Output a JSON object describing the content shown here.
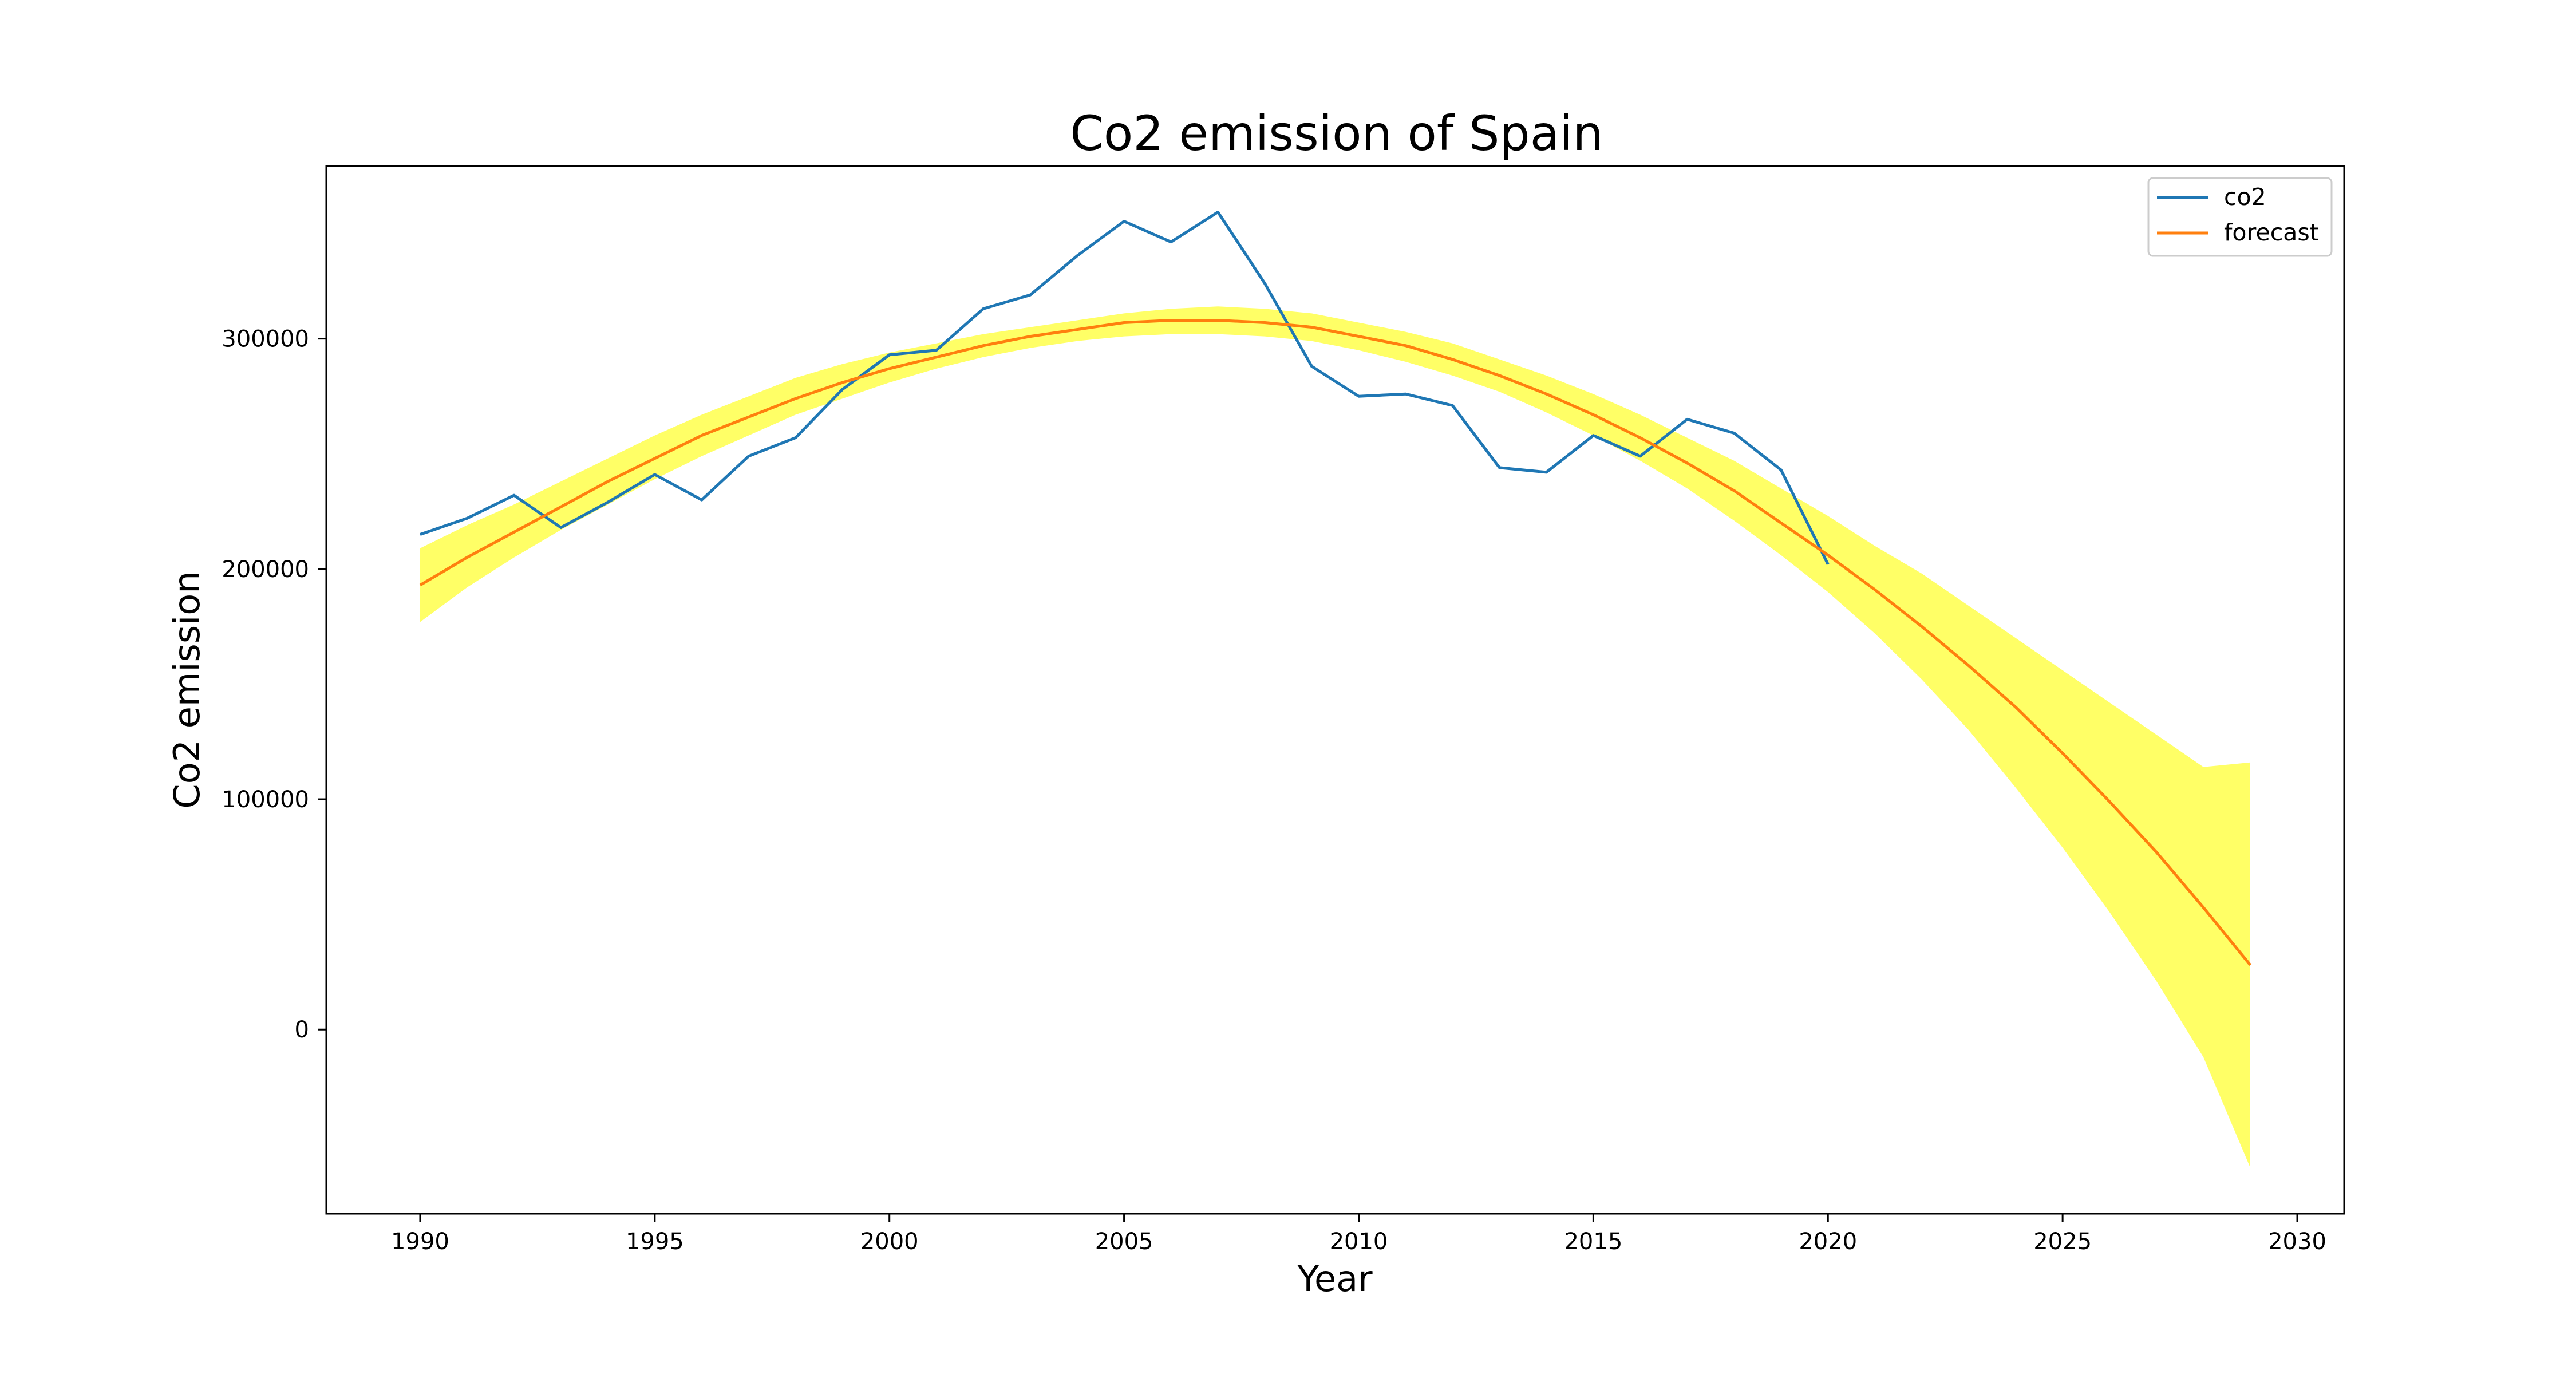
{
  "chart_data": {
    "type": "line",
    "title": "Co2 emission of Spain",
    "xlabel": "Year",
    "ylabel": "Co2 emission",
    "xlim": [
      1988,
      2031
    ],
    "ylim": [
      -80000,
      375000
    ],
    "xticks": [
      1990,
      1995,
      2000,
      2005,
      2010,
      2015,
      2020,
      2025,
      2030
    ],
    "yticks": [
      0,
      100000,
      200000,
      300000
    ],
    "grid": false,
    "legend_position": "top-right",
    "series": [
      {
        "name": "co2",
        "color": "#1f77b4",
        "x": [
          1990,
          1991,
          1992,
          1993,
          1994,
          1995,
          1996,
          1997,
          1998,
          1999,
          2000,
          2001,
          2002,
          2003,
          2004,
          2005,
          2006,
          2007,
          2008,
          2009,
          2010,
          2011,
          2012,
          2013,
          2014,
          2015,
          2016,
          2017,
          2018,
          2019,
          2020
        ],
        "values": [
          215000,
          222000,
          232000,
          218000,
          229000,
          241000,
          230000,
          249000,
          257000,
          278000,
          293000,
          295000,
          313000,
          319000,
          336000,
          351000,
          342000,
          355000,
          324000,
          288000,
          275000,
          276000,
          271000,
          244000,
          242000,
          258000,
          249000,
          265000,
          259000,
          243000,
          202000
        ]
      },
      {
        "name": "forecast",
        "color": "#ff7f0e",
        "x": [
          1990,
          1991,
          1992,
          1993,
          1994,
          1995,
          1996,
          1997,
          1998,
          1999,
          2000,
          2001,
          2002,
          2003,
          2004,
          2005,
          2006,
          2007,
          2008,
          2009,
          2010,
          2011,
          2012,
          2013,
          2014,
          2015,
          2016,
          2017,
          2018,
          2019,
          2020,
          2021,
          2022,
          2023,
          2024,
          2025,
          2026,
          2027,
          2028,
          2029
        ],
        "values": [
          193000,
          205000,
          216000,
          227000,
          238000,
          248000,
          258000,
          266000,
          274000,
          281000,
          287000,
          292000,
          297000,
          301000,
          304000,
          307000,
          308000,
          308000,
          307000,
          305000,
          301000,
          297000,
          291000,
          284000,
          276000,
          267000,
          257000,
          246000,
          234000,
          220000,
          206000,
          191000,
          175000,
          158000,
          140000,
          120000,
          99000,
          77000,
          53000,
          28000
        ]
      }
    ],
    "confidence_band": {
      "color": "#ffff66",
      "x": [
        1990,
        1991,
        1992,
        1993,
        1994,
        1995,
        1996,
        1997,
        1998,
        1999,
        2000,
        2001,
        2002,
        2003,
        2004,
        2005,
        2006,
        2007,
        2008,
        2009,
        2010,
        2011,
        2012,
        2013,
        2014,
        2015,
        2016,
        2017,
        2018,
        2019,
        2020,
        2021,
        2022,
        2023,
        2024,
        2025,
        2026,
        2027,
        2028,
        2029
      ],
      "lower": [
        177000,
        192000,
        205000,
        217000,
        228000,
        239000,
        249000,
        258000,
        267000,
        274000,
        281000,
        287000,
        292000,
        296000,
        299000,
        301000,
        302000,
        302000,
        301000,
        299000,
        295000,
        290000,
        284000,
        277000,
        268000,
        258000,
        247000,
        235000,
        221000,
        206000,
        190000,
        172000,
        152000,
        130000,
        105000,
        79000,
        51000,
        21000,
        -12000,
        -60000
      ],
      "upper": [
        209000,
        219000,
        228000,
        238000,
        248000,
        258000,
        267000,
        275000,
        283000,
        289000,
        294000,
        298000,
        302000,
        305000,
        308000,
        311000,
        313000,
        314000,
        313000,
        311000,
        307000,
        303000,
        298000,
        291000,
        284000,
        276000,
        267000,
        257000,
        247000,
        235000,
        223000,
        210000,
        198000,
        184000,
        170000,
        156000,
        142000,
        128000,
        114000,
        116000
      ]
    }
  }
}
